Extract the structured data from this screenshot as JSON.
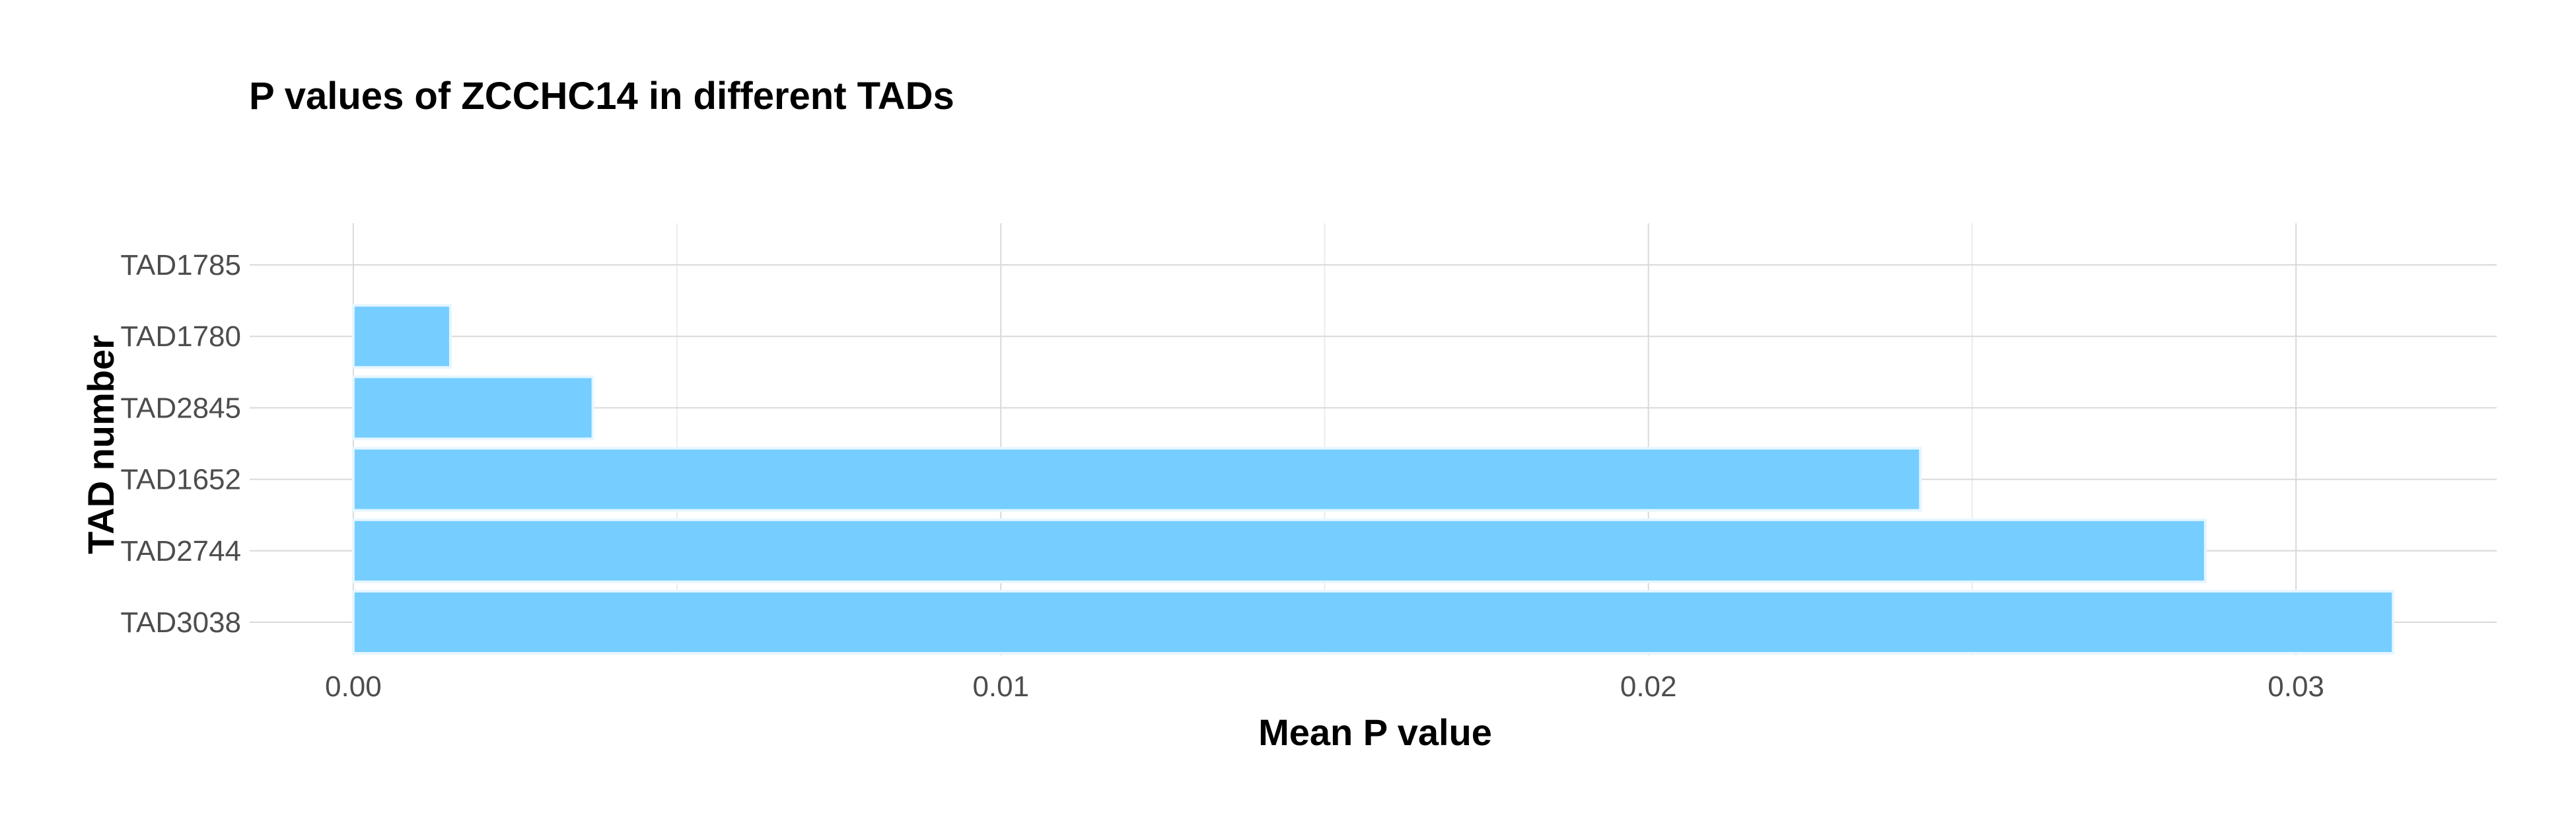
{
  "chart_data": {
    "type": "bar",
    "orientation": "horizontal",
    "title": "P values of ZCCHC14 in different TADs",
    "xlabel": "Mean P value",
    "ylabel": "TAD number",
    "categories": [
      "TAD1785",
      "TAD1780",
      "TAD2845",
      "TAD1652",
      "TAD2744",
      "TAD3038"
    ],
    "values": [
      0.0,
      0.0015,
      0.0037,
      0.0242,
      0.0286,
      0.0315
    ],
    "xlim": [
      -0.0016,
      0.0331
    ],
    "x_ticks": [
      0.0,
      0.01,
      0.02,
      0.03
    ],
    "x_tick_labels": [
      "0.00",
      "0.01",
      "0.02",
      "0.03"
    ],
    "grid": true,
    "legend": "none",
    "colors": {
      "bar_fill": "#75ceff",
      "bar_stroke": "#e6f6ff",
      "grid_major": "#d9d9d9",
      "grid_minor": "#ececec",
      "tick_text": "#4d4d4d",
      "title_text": "#000000"
    }
  }
}
